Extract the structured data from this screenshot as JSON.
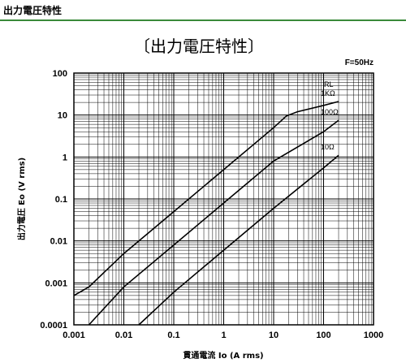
{
  "page": {
    "header_title": "出力電圧特性",
    "accent_color": "#3a8a3a"
  },
  "chart_data": {
    "type": "line",
    "title": "〔出力電圧特性〕",
    "annotation": "F=50Hz",
    "xlabel": "貫通電流 Io (A rms)",
    "ylabel": "出力電圧 Eo (V rms)",
    "xscale": "log",
    "yscale": "log",
    "xlim": [
      0.001,
      1000
    ],
    "ylim": [
      0.0001,
      100
    ],
    "grid": true,
    "x_tick_labels": [
      "0.001",
      "0.01",
      "0.1",
      "1",
      "10",
      "100",
      "1000"
    ],
    "y_tick_labels": [
      "100",
      "10",
      "1",
      "0.1",
      "0.01",
      "0.001",
      "0.0001"
    ],
    "legend_title": "RL",
    "series": [
      {
        "name": "1KΩ",
        "x": [
          0.001,
          0.002,
          0.01,
          0.1,
          1,
          10,
          18,
          30,
          100,
          200
        ],
        "y": [
          0.0005,
          0.0008,
          0.005,
          0.05,
          0.5,
          5,
          9.5,
          12,
          17,
          21
        ]
      },
      {
        "name": "100Ω",
        "x": [
          0.002,
          0.01,
          0.1,
          1,
          10,
          100,
          200
        ],
        "y": [
          0.0001,
          0.0008,
          0.008,
          0.08,
          0.8,
          4,
          7.5
        ]
      },
      {
        "name": "10Ω",
        "x": [
          0.02,
          0.1,
          1,
          10,
          100,
          200
        ],
        "y": [
          0.0001,
          0.0006,
          0.006,
          0.06,
          0.55,
          1.1
        ]
      }
    ]
  }
}
